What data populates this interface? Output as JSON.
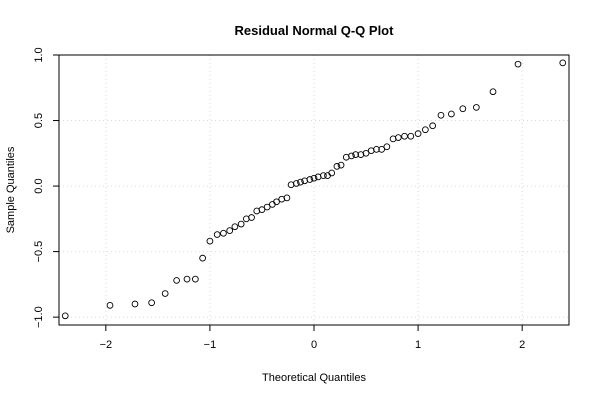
{
  "chart_data": {
    "type": "scatter",
    "title": "Residual Normal Q-Q Plot",
    "xlabel": "Theoretical Quantiles",
    "ylabel": "Sample Quantiles",
    "xlim": [
      -2.45,
      2.45
    ],
    "ylim": [
      -1.06,
      1.0
    ],
    "grid": true,
    "x_ticks": [
      -2,
      -1,
      0,
      1,
      2
    ],
    "x_tick_labels": [
      "−2",
      "−1",
      "0",
      "1",
      "2"
    ],
    "y_ticks": [
      -1.0,
      -0.5,
      0.0,
      0.5,
      1.0
    ],
    "y_tick_labels": [
      "−1.0",
      "−0.5",
      "0.0",
      "0.5",
      "1.0"
    ],
    "series": [
      {
        "x": [
          -2.39,
          -1.96,
          -1.72,
          -1.56,
          -1.43,
          -1.32,
          -1.22,
          -1.14,
          -1.07,
          -1.0,
          -0.93,
          -0.87,
          -0.81,
          -0.76,
          -0.7,
          -0.65,
          -0.6,
          -0.55,
          -0.5,
          -0.45,
          -0.4,
          -0.36,
          -0.31,
          -0.26,
          -0.22,
          -0.17,
          -0.13,
          -0.09,
          -0.04,
          0.0,
          0.04,
          0.09,
          0.13,
          0.17,
          0.22,
          0.26,
          0.31,
          0.36,
          0.4,
          0.45,
          0.5,
          0.55,
          0.6,
          0.65,
          0.7,
          0.76,
          0.81,
          0.87,
          0.93,
          1.0,
          1.07,
          1.14,
          1.22,
          1.32,
          1.43,
          1.56,
          1.72,
          1.96,
          2.39
        ],
        "y": [
          -0.99,
          -0.91,
          -0.9,
          -0.89,
          -0.82,
          -0.72,
          -0.71,
          -0.71,
          -0.55,
          -0.42,
          -0.37,
          -0.36,
          -0.34,
          -0.31,
          -0.29,
          -0.25,
          -0.24,
          -0.19,
          -0.18,
          -0.16,
          -0.14,
          -0.12,
          -0.1,
          -0.09,
          0.01,
          0.02,
          0.03,
          0.04,
          0.05,
          0.06,
          0.07,
          0.08,
          0.08,
          0.1,
          0.15,
          0.16,
          0.22,
          0.23,
          0.24,
          0.24,
          0.25,
          0.27,
          0.28,
          0.28,
          0.3,
          0.36,
          0.37,
          0.38,
          0.38,
          0.4,
          0.43,
          0.46,
          0.54,
          0.55,
          0.59,
          0.6,
          0.72,
          0.93,
          0.94
        ]
      }
    ]
  }
}
